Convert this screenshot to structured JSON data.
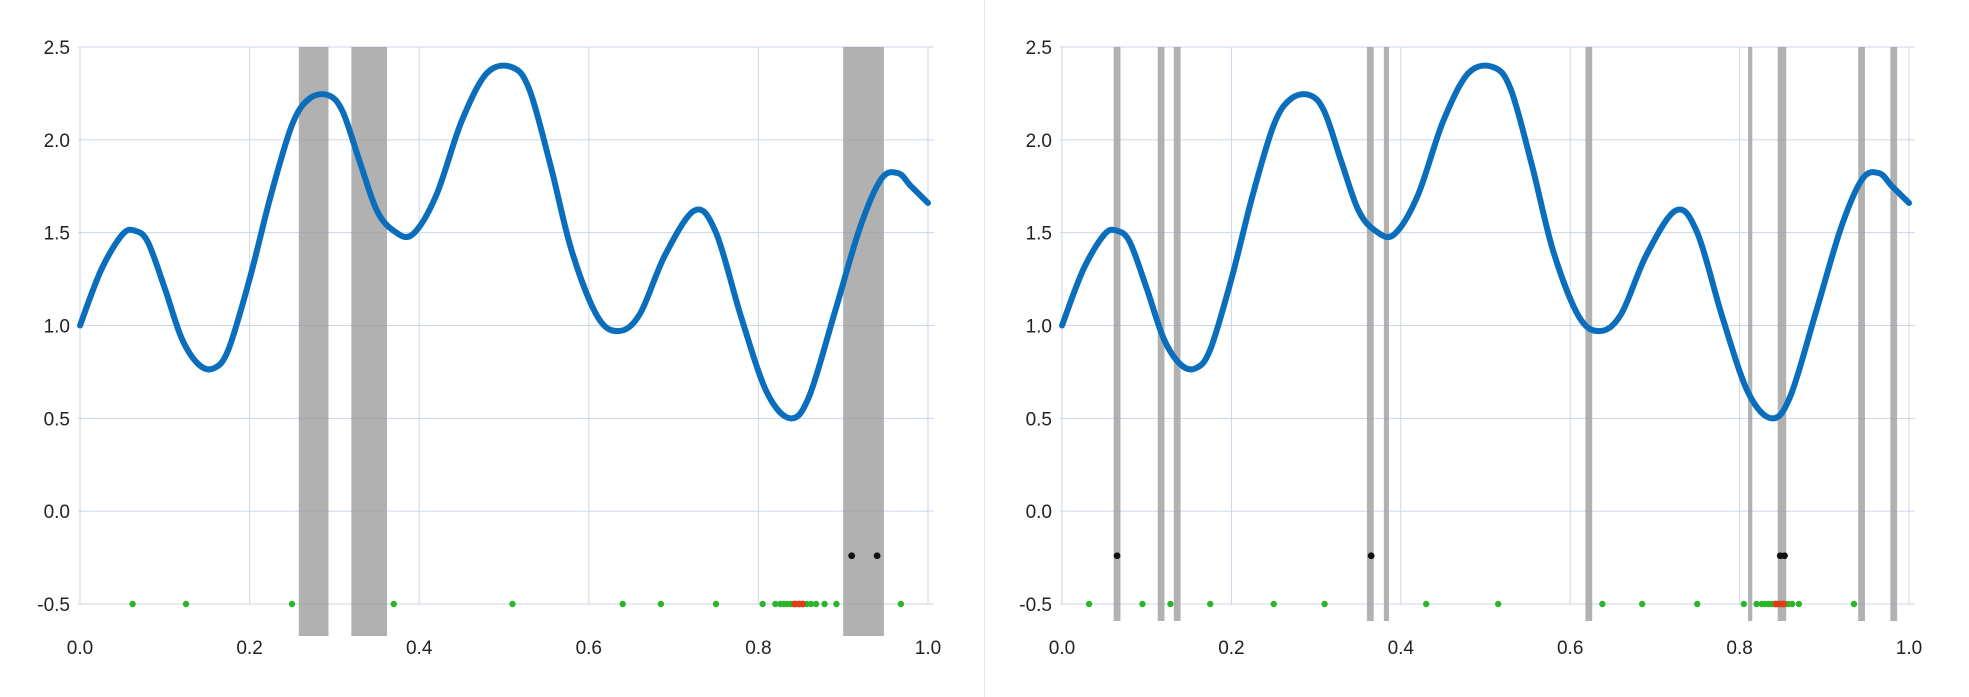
{
  "chart_data": [
    {
      "type": "line",
      "title": "",
      "xlabel": "",
      "ylabel": "",
      "xlim": [
        0.0,
        1.0
      ],
      "ylim": [
        -0.5,
        2.5
      ],
      "xticks": [
        "0.0",
        "0.2",
        "0.4",
        "0.6",
        "0.8",
        "1.0"
      ],
      "yticks": [
        "2.5",
        "2.0",
        "1.5",
        "1.0",
        "0.5",
        "0.0",
        "-0.5"
      ],
      "grid": true,
      "series": [
        {
          "color": "#0a6ebd",
          "x": [
            0.0,
            0.025,
            0.05,
            0.065,
            0.08,
            0.1,
            0.12,
            0.14,
            0.158,
            0.175,
            0.2,
            0.225,
            0.25,
            0.27,
            0.293,
            0.31,
            0.33,
            0.35,
            0.37,
            0.392,
            0.42,
            0.45,
            0.48,
            0.51,
            0.53,
            0.555,
            0.58,
            0.61,
            0.635,
            0.66,
            0.69,
            0.725,
            0.75,
            0.78,
            0.81,
            0.838,
            0.86,
            0.89,
            0.92,
            0.945,
            0.965,
            0.98,
            1.0
          ],
          "y": [
            1.0,
            1.3,
            1.49,
            1.51,
            1.45,
            1.2,
            0.93,
            0.79,
            0.77,
            0.87,
            1.25,
            1.7,
            2.08,
            2.22,
            2.24,
            2.15,
            1.88,
            1.62,
            1.51,
            1.49,
            1.7,
            2.1,
            2.36,
            2.39,
            2.27,
            1.86,
            1.4,
            1.05,
            0.97,
            1.06,
            1.38,
            1.62,
            1.5,
            1.04,
            0.64,
            0.5,
            0.62,
            1.07,
            1.53,
            1.79,
            1.82,
            1.75,
            1.66
          ]
        }
      ],
      "shaded_intervals": [
        [
          0.258,
          0.293
        ],
        [
          0.32,
          0.362
        ],
        [
          0.9,
          0.948
        ]
      ],
      "green_points_x": [
        0.062,
        0.125,
        0.25,
        0.37,
        0.51,
        0.64,
        0.685,
        0.75,
        0.805,
        0.82,
        0.826,
        0.83,
        0.834,
        0.838,
        0.841,
        0.845,
        0.849,
        0.853,
        0.857,
        0.862,
        0.868,
        0.878,
        0.892,
        0.968
      ],
      "green_points_y": -0.5,
      "red_points_x": [
        0.843,
        0.848,
        0.852
      ],
      "black_points": [
        [
          0.91,
          -0.24
        ],
        [
          0.94,
          -0.24
        ]
      ]
    },
    {
      "type": "line",
      "title": "",
      "xlabel": "",
      "ylabel": "",
      "xlim": [
        0.0,
        1.0
      ],
      "ylim": [
        -0.5,
        2.5
      ],
      "xticks": [
        "0.0",
        "0.2",
        "0.4",
        "0.6",
        "0.8",
        "1.0"
      ],
      "yticks": [
        "2.5",
        "2.0",
        "1.5",
        "1.0",
        "0.5",
        "0.0",
        "-0.5"
      ],
      "grid": true,
      "series": [
        {
          "color": "#0a6ebd",
          "x": [
            0.0,
            0.025,
            0.05,
            0.065,
            0.08,
            0.1,
            0.12,
            0.14,
            0.158,
            0.175,
            0.2,
            0.225,
            0.25,
            0.27,
            0.293,
            0.31,
            0.33,
            0.35,
            0.37,
            0.392,
            0.42,
            0.45,
            0.48,
            0.51,
            0.53,
            0.555,
            0.58,
            0.61,
            0.635,
            0.66,
            0.69,
            0.725,
            0.75,
            0.78,
            0.81,
            0.838,
            0.86,
            0.89,
            0.92,
            0.945,
            0.965,
            0.98,
            1.0
          ],
          "y": [
            1.0,
            1.3,
            1.49,
            1.51,
            1.45,
            1.2,
            0.93,
            0.79,
            0.77,
            0.87,
            1.25,
            1.7,
            2.08,
            2.22,
            2.24,
            2.15,
            1.88,
            1.62,
            1.51,
            1.49,
            1.7,
            2.1,
            2.36,
            2.39,
            2.27,
            1.86,
            1.4,
            1.05,
            0.97,
            1.06,
            1.38,
            1.62,
            1.5,
            1.04,
            0.64,
            0.5,
            0.62,
            1.07,
            1.53,
            1.79,
            1.82,
            1.75,
            1.66
          ]
        }
      ],
      "shaded_intervals": [
        [
          0.061,
          0.069
        ],
        [
          0.113,
          0.121
        ],
        [
          0.132,
          0.14
        ],
        [
          0.36,
          0.368
        ],
        [
          0.38,
          0.386
        ],
        [
          0.618,
          0.626
        ],
        [
          0.81,
          0.815
        ],
        [
          0.845,
          0.855
        ],
        [
          0.94,
          0.948
        ],
        [
          0.978,
          0.986
        ]
      ],
      "green_points_x": [
        0.032,
        0.095,
        0.128,
        0.175,
        0.25,
        0.31,
        0.43,
        0.515,
        0.638,
        0.685,
        0.75,
        0.805,
        0.82,
        0.826,
        0.83,
        0.834,
        0.838,
        0.841,
        0.845,
        0.849,
        0.853,
        0.857,
        0.862,
        0.87,
        0.935
      ],
      "green_points_y": -0.5,
      "red_points_x": [
        0.843,
        0.848,
        0.852
      ],
      "black_points": [
        [
          0.065,
          -0.24
        ],
        [
          0.365,
          -0.24
        ],
        [
          0.848,
          -0.24
        ],
        [
          0.853,
          -0.24
        ]
      ]
    }
  ],
  "colors": {
    "curve": "#0a6ebd",
    "shade": "#9e9e9e",
    "green_point": "#2bb52b",
    "red_point": "#e23a1a",
    "black_point": "#111111",
    "grid": "#ccd6ea"
  }
}
